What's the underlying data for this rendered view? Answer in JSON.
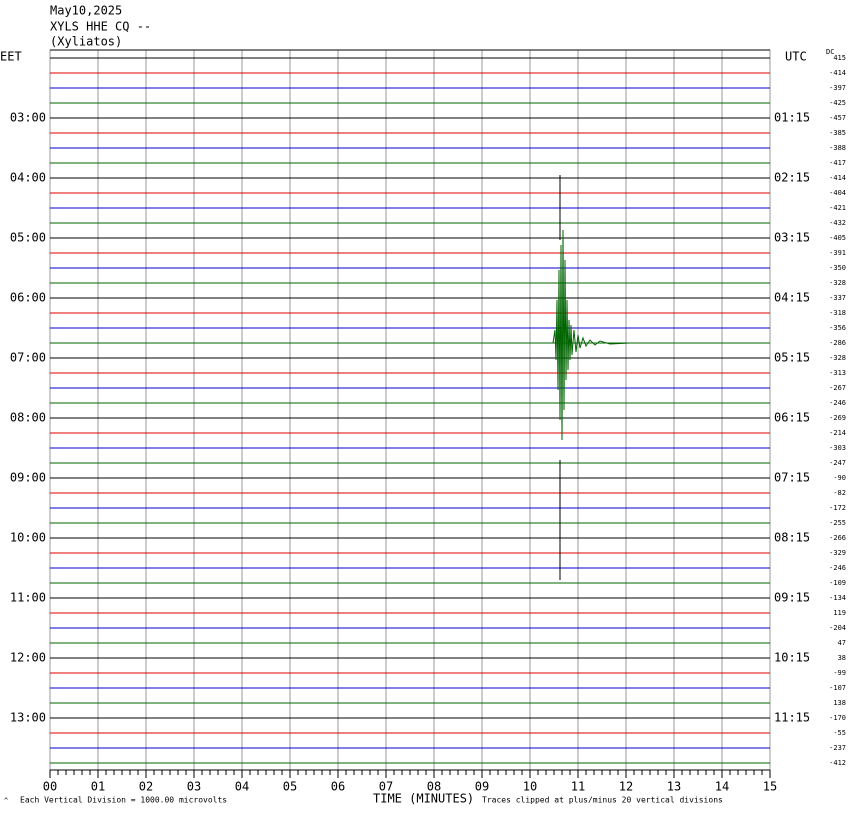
{
  "header": {
    "date": "May10,2025",
    "station": "XYLS HHE CQ --",
    "location": "(Xyliatos)",
    "left_zone": "EET",
    "right_zone": "UTC",
    "dc_label": "DC"
  },
  "trace_colors": [
    "#000000",
    "#e00000",
    "#0000d0",
    "#006400"
  ],
  "left_times": [
    "03:00",
    "04:00",
    "05:00",
    "06:00",
    "07:00",
    "08:00",
    "09:00",
    "10:00",
    "11:00",
    "12:00",
    "13:00"
  ],
  "right_times": [
    "01:15",
    "02:15",
    "03:15",
    "04:15",
    "05:15",
    "06:15",
    "07:15",
    "08:15",
    "09:15",
    "10:15",
    "11:15"
  ],
  "dc_offsets": [
    "415",
    "-414",
    "-397",
    "-425",
    "-457",
    "-385",
    "-388",
    "-417",
    "-414",
    "-404",
    "-421",
    "-432",
    "-405",
    "-391",
    "-350",
    "-328",
    "-337",
    "-318",
    "-356",
    "-286",
    "-328",
    "-313",
    "-267",
    "-246",
    "-269",
    "-214",
    "-303",
    "-247",
    "-90",
    "-82",
    "-172",
    "-255",
    "-266",
    "-329",
    "-246",
    "-109",
    "-134",
    "119",
    "-204",
    "47",
    "38",
    "-99",
    "-107",
    "138",
    "-170",
    "-55",
    "-237",
    "-412"
  ],
  "x_ticks": [
    "00",
    "01",
    "02",
    "03",
    "04",
    "05",
    "06",
    "07",
    "08",
    "09",
    "10",
    "11",
    "12",
    "13",
    "14",
    "15"
  ],
  "footer": {
    "scale": "Each Vertical Division = 1000.00 microvolts",
    "axis_title": "TIME (MINUTES)",
    "clip_note": "Traces clipped at plus/minus 20 vertical divisions"
  }
}
